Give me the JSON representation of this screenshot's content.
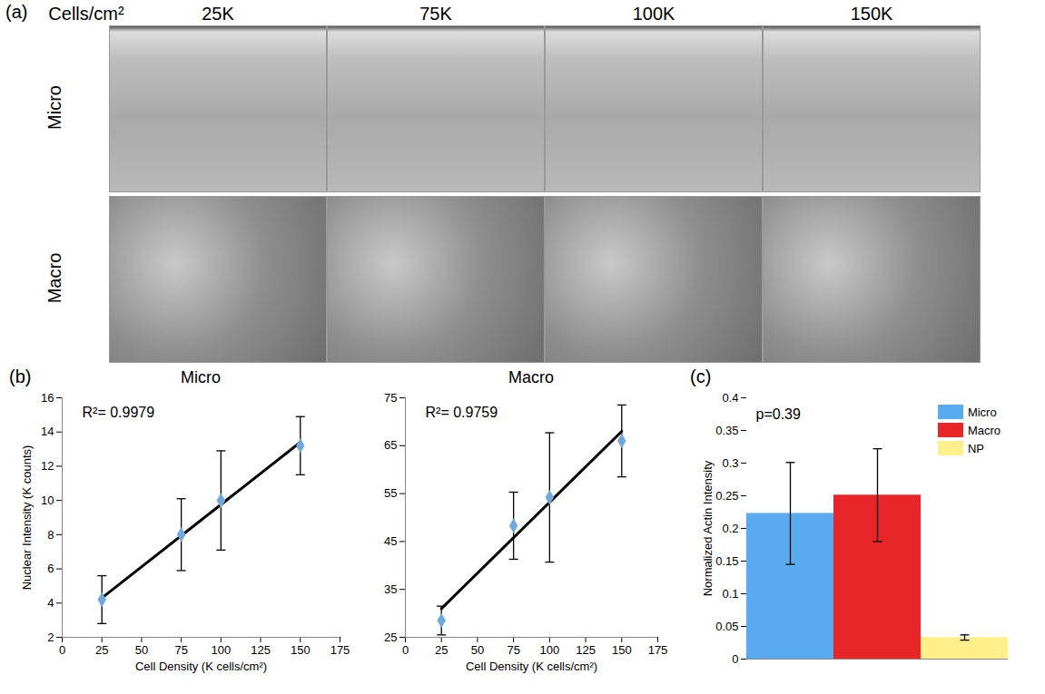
{
  "panel_a": {
    "label": "(a)",
    "header": "Cells/cm²",
    "columns": [
      "25K",
      "75K",
      "100K",
      "150K"
    ],
    "rows": [
      "Micro",
      "Macro"
    ]
  },
  "chart_data": [
    {
      "type": "scatter",
      "panel_label": "(b)",
      "title": "Micro",
      "x": [
        25,
        75,
        100,
        150
      ],
      "values": [
        4.2,
        8.0,
        10.0,
        13.2
      ],
      "errors": [
        1.4,
        2.1,
        2.9,
        1.7
      ],
      "trendline": {
        "x": [
          25,
          150
        ],
        "values": [
          4.3,
          13.4
        ]
      },
      "annotation": "R²= 0.9979",
      "xlabel": "Cell Density (K cells/cm²)",
      "ylabel": "Nuclear Intensity (K counts)",
      "xlim": [
        0,
        175
      ],
      "xticks": [
        0,
        25,
        50,
        75,
        100,
        125,
        150,
        175
      ],
      "ylim": [
        2,
        16
      ],
      "yticks": [
        2,
        4,
        6,
        8,
        10,
        12,
        14,
        16
      ],
      "color": "#6fa8dc",
      "marker": "diamond"
    },
    {
      "type": "scatter",
      "title": "Macro",
      "x": [
        25,
        75,
        100,
        150
      ],
      "values": [
        28.5,
        48.3,
        54.2,
        66.0
      ],
      "errors": [
        3.0,
        7.0,
        13.5,
        7.5
      ],
      "trendline": {
        "x": [
          25,
          150
        ],
        "values": [
          31.0,
          68.0
        ]
      },
      "annotation": "R²= 0.9759",
      "xlabel": "Cell Density (K cells/cm²)",
      "xlim": [
        0,
        175
      ],
      "xticks": [
        0,
        25,
        50,
        75,
        100,
        125,
        150,
        175
      ],
      "ylim": [
        25,
        75
      ],
      "yticks": [
        25,
        35,
        45,
        55,
        65,
        75
      ],
      "color": "#6fa8dc",
      "marker": "diamond"
    },
    {
      "type": "bar",
      "panel_label": "(c)",
      "categories": [
        "Micro",
        "Macro",
        "NP"
      ],
      "values": [
        0.223,
        0.251,
        0.033
      ],
      "errors": [
        0.078,
        0.071,
        0.004
      ],
      "colors": [
        "#5aaaf0",
        "#e8262a",
        "#fff08c"
      ],
      "ylabel": "Normalized Actin Intensity",
      "ylim": [
        0,
        0.4
      ],
      "yticks": [
        0,
        0.05,
        0.1,
        0.15,
        0.2,
        0.25,
        0.3,
        0.35,
        0.4
      ],
      "annotation": "p=0.39",
      "legend": "top-right",
      "tick_labels": "y"
    }
  ]
}
